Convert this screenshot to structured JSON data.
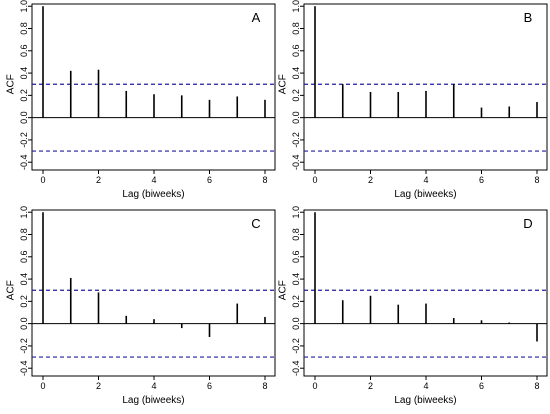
{
  "chart_data": [
    {
      "type": "bar",
      "panel_label": "A",
      "xlabel": "Lag (biweeks)",
      "ylabel": "ACF",
      "x": [
        0,
        1,
        2,
        3,
        4,
        5,
        6,
        7,
        8
      ],
      "values": [
        1.0,
        0.42,
        0.43,
        0.24,
        0.21,
        0.2,
        0.16,
        0.19,
        0.16
      ],
      "xlim": [
        0,
        8
      ],
      "ylim": [
        -0.4,
        1.0
      ],
      "xticks": [
        "0",
        "2",
        "4",
        "6",
        "8"
      ],
      "yticks": [
        "-0.4",
        "-0.2",
        "0.0",
        "0.2",
        "0.4",
        "0.6",
        "0.8",
        "1.0"
      ],
      "confidence_bounds": [
        0.3,
        -0.3
      ],
      "grid": false
    },
    {
      "type": "bar",
      "panel_label": "B",
      "xlabel": "Lag (biweeks)",
      "ylabel": "ACF",
      "x": [
        0,
        1,
        2,
        3,
        4,
        5,
        6,
        7,
        8
      ],
      "values": [
        1.0,
        0.3,
        0.23,
        0.23,
        0.24,
        0.3,
        0.09,
        0.1,
        0.14
      ],
      "xlim": [
        0,
        8
      ],
      "ylim": [
        -0.4,
        1.0
      ],
      "xticks": [
        "0",
        "2",
        "4",
        "6",
        "8"
      ],
      "yticks": [
        "-0.4",
        "-0.2",
        "0.0",
        "0.2",
        "0.4",
        "0.6",
        "0.8",
        "1.0"
      ],
      "confidence_bounds": [
        0.3,
        -0.3
      ],
      "grid": false
    },
    {
      "type": "bar",
      "panel_label": "C",
      "xlabel": "Lag (biweeks)",
      "ylabel": "ACF",
      "x": [
        0,
        1,
        2,
        3,
        4,
        5,
        6,
        7,
        8
      ],
      "values": [
        1.0,
        0.41,
        0.28,
        0.07,
        0.04,
        -0.04,
        -0.12,
        0.18,
        0.06
      ],
      "xlim": [
        0,
        8
      ],
      "ylim": [
        -0.4,
        1.0
      ],
      "xticks": [
        "0",
        "2",
        "4",
        "6",
        "8"
      ],
      "yticks": [
        "-0.4",
        "-0.2",
        "0.0",
        "0.2",
        "0.4",
        "0.6",
        "0.8",
        "1.0"
      ],
      "confidence_bounds": [
        0.3,
        -0.3
      ],
      "grid": false
    },
    {
      "type": "bar",
      "panel_label": "D",
      "xlabel": "Lag (biweeks)",
      "ylabel": "ACF",
      "x": [
        0,
        1,
        2,
        3,
        4,
        5,
        6,
        7,
        8
      ],
      "values": [
        1.0,
        0.21,
        0.25,
        0.17,
        0.18,
        0.05,
        0.03,
        0.01,
        -0.16
      ],
      "xlim": [
        0,
        8
      ],
      "ylim": [
        -0.4,
        1.0
      ],
      "xticks": [
        "0",
        "2",
        "4",
        "6",
        "8"
      ],
      "yticks": [
        "-0.4",
        "-0.2",
        "0.0",
        "0.2",
        "0.4",
        "0.6",
        "0.8",
        "1.0"
      ],
      "confidence_bounds": [
        0.3,
        -0.3
      ],
      "grid": false
    }
  ],
  "colors": {
    "bar": "#000000",
    "confidence_line": "#1f1f9f",
    "zero_line": "#000000",
    "frame": "#000000",
    "background": "#ffffff"
  }
}
